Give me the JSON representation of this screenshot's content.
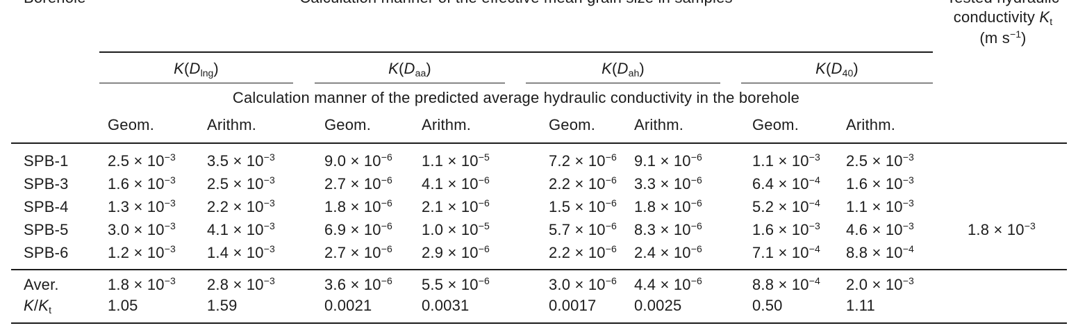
{
  "colors": {
    "background": "#ffffff",
    "text": "#1c1c1c",
    "rule": "#1c1c1c"
  },
  "headers": {
    "borehole": "Borehole",
    "grain_size": "Calculation manner of the effective mean grain size in samples",
    "tested_lines": [
      "Tested hydraulic",
      "conductivity *K*_{t}",
      "(m s^{−1})"
    ],
    "groups": [
      "*K*(*D*_{lng})",
      "*K*(*D*_{aa})",
      "*K*(*D*_{ah})",
      "*K*(*D*_{40})"
    ],
    "predicted": "Calculation manner of the predicted average hydraulic conductivity in the borehole",
    "methods": [
      "Geom.",
      "Arithm.",
      "Geom.",
      "Arithm.",
      "Geom.",
      "Arithm.",
      "Geom.",
      "Arithm."
    ]
  },
  "rows": [
    {
      "label": "SPB-1",
      "cells": [
        "2.5 × 10^{−3}",
        "3.5 × 10^{−3}",
        "9.0 × 10^{−6}",
        "1.1 × 10^{−5}",
        "7.2 × 10^{−6}",
        "9.1 × 10^{−6}",
        "1.1 × 10^{−3}",
        "2.5 × 10^{−3}"
      ],
      "tested": null
    },
    {
      "label": "SPB-3",
      "cells": [
        "1.6 × 10^{−3}",
        "2.5 × 10^{−3}",
        "2.7 × 10^{−6}",
        "4.1 × 10^{−6}",
        "2.2 × 10^{−6}",
        "3.3 × 10^{−6}",
        "6.4 × 10^{−4}",
        "1.6 × 10^{−3}"
      ],
      "tested": null
    },
    {
      "label": "SPB-4",
      "cells": [
        "1.3 × 10^{−3}",
        "2.2 × 10^{−3}",
        "1.8 × 10^{−6}",
        "2.1 × 10^{−6}",
        "1.5 × 10^{−6}",
        "1.8 × 10^{−6}",
        "5.2 × 10^{−4}",
        "1.1 × 10^{−3}"
      ],
      "tested": null
    },
    {
      "label": "SPB-5",
      "cells": [
        "3.0 × 10^{−3}",
        "4.1 × 10^{−3}",
        "6.9 × 10^{−6}",
        "1.0 × 10^{−5}",
        "5.7 × 10^{−6}",
        "8.3 × 10^{−6}",
        "1.6 × 10^{−3}",
        "4.6 × 10^{−3}"
      ],
      "tested": "1.8 × 10^{−3}"
    },
    {
      "label": "SPB-6",
      "cells": [
        "1.2 × 10^{−3}",
        "1.4 × 10^{−3}",
        "2.7 × 10^{−6}",
        "2.9 × 10^{−6}",
        "2.2 × 10^{−6}",
        "2.4 × 10^{−6}",
        "7.1 × 10^{−4}",
        "8.8 × 10^{−4}"
      ],
      "tested": null
    }
  ],
  "summary": [
    {
      "label": "Aver.",
      "cells": [
        "1.8 × 10^{−3}",
        "2.8 × 10^{−3}",
        "3.6 × 10^{−6}",
        "5.5 × 10^{−6}",
        "3.0 × 10^{−6}",
        "4.4 × 10^{−6}",
        "8.8 × 10^{−4}",
        "2.0 × 10^{−3}"
      ],
      "tested": null
    },
    {
      "label": "*K*/*K*_{t}",
      "cells": [
        "1.05",
        "1.59",
        "0.0021",
        "0.0031",
        "0.0017",
        "0.0025",
        "0.50",
        "1.11"
      ],
      "tested": null
    }
  ]
}
